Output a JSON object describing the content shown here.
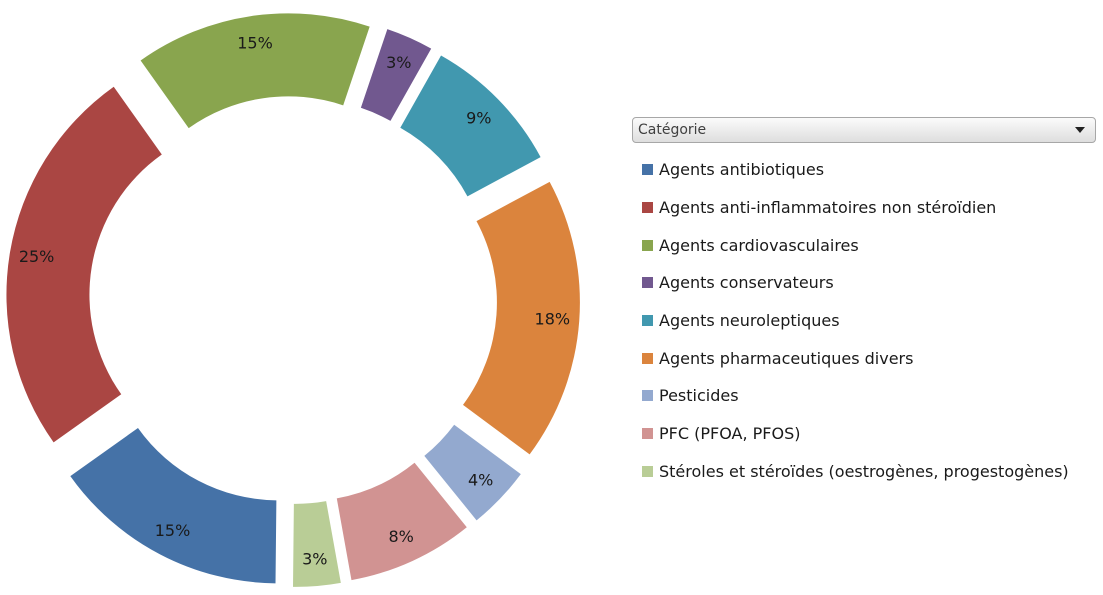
{
  "chart_data": {
    "type": "pie",
    "subtype": "exploded-doughnut",
    "legend_title": "Catégorie",
    "legend_position": "right",
    "series": [
      {
        "name": "Agents antibiotiques",
        "value": 15,
        "label": "15%",
        "color": "#4572A7"
      },
      {
        "name": "Agents anti-inflammatoires non stéroïdien",
        "value": 25,
        "label": "25%",
        "color": "#AA4643"
      },
      {
        "name": "Agents cardiovasculaires",
        "value": 15,
        "label": "15%",
        "color": "#89A54E"
      },
      {
        "name": "Agents conservateurs",
        "value": 3,
        "label": "3%",
        "color": "#71588F"
      },
      {
        "name": "Agents neuroleptiques",
        "value": 9,
        "label": "9%",
        "color": "#4198AF"
      },
      {
        "name": "Agents pharmaceutiques divers",
        "value": 18,
        "label": "18%",
        "color": "#DB843D"
      },
      {
        "name": "Pesticides",
        "value": 4,
        "label": "4%",
        "color": "#93A9CF"
      },
      {
        "name": "PFC (PFOA, PFOS)",
        "value": 8,
        "label": "8%",
        "color": "#D19392"
      },
      {
        "name": "Stéroles et stéroïdes (oestrogènes, progestogènes)",
        "value": 3,
        "label": "3%",
        "color": "#B9CD96"
      }
    ]
  }
}
